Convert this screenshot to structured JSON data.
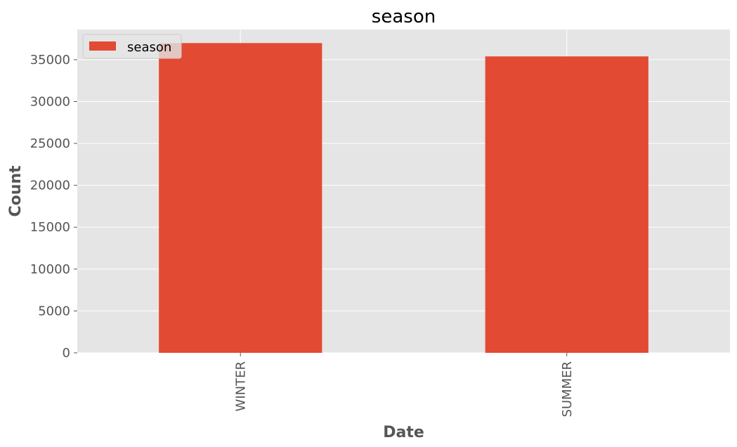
{
  "chart_data": {
    "type": "bar",
    "title": "season",
    "xlabel": "Date",
    "ylabel": "Count",
    "categories": [
      "WINTER",
      "SUMMER"
    ],
    "series": [
      {
        "name": "season",
        "values": [
          36980,
          35390
        ],
        "color": "#E24A33"
      }
    ],
    "ylim": [
      0,
      38600
    ],
    "yticks": [
      0,
      5000,
      10000,
      15000,
      20000,
      25000,
      30000,
      35000
    ],
    "grid": true,
    "legend_position": "top-left",
    "colors": {
      "plot_background": "#E5E5E5",
      "grid": "#FFFFFF",
      "tick_text": "#555555"
    }
  }
}
